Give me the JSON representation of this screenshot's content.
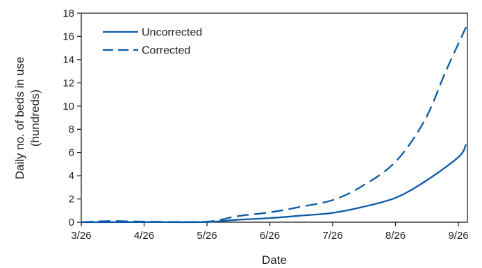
{
  "chart_data": {
    "type": "line",
    "title": "",
    "xlabel": "Date",
    "ylabel": [
      "Daily no. of beds in use",
      "(hundreds)"
    ],
    "x_ticks": [
      "3/26",
      "4/26",
      "5/26",
      "6/26",
      "7/26",
      "8/26",
      "9/26"
    ],
    "y_ticks": [
      "0",
      "2",
      "4",
      "6",
      "8",
      "10",
      "12",
      "14",
      "16",
      "18"
    ],
    "ylim": [
      0,
      18
    ],
    "grid": false,
    "legend_position": "top-left",
    "colors": {
      "line": "#0a5aa5",
      "axis": "#231f20"
    },
    "series": [
      {
        "name": "Uncorrected",
        "style": "solid",
        "points": [
          [
            "3/26",
            0.0
          ],
          [
            "4/26",
            0.01
          ],
          [
            "5/26",
            0.02
          ],
          [
            "6/10",
            0.2
          ],
          [
            "6/26",
            0.35
          ],
          [
            "7/10",
            0.55
          ],
          [
            "7/26",
            0.8
          ],
          [
            "8/10",
            1.3
          ],
          [
            "8/26",
            2.1
          ],
          [
            "9/10",
            3.5
          ],
          [
            "9/26",
            5.6
          ],
          [
            "9/30",
            6.7
          ]
        ]
      },
      {
        "name": "Corrected",
        "style": "dashed",
        "points": [
          [
            "3/26",
            0.0
          ],
          [
            "4/10",
            0.1
          ],
          [
            "4/26",
            0.05
          ],
          [
            "5/26",
            0.05
          ],
          [
            "6/10",
            0.5
          ],
          [
            "6/26",
            0.85
          ],
          [
            "7/10",
            1.3
          ],
          [
            "7/26",
            1.9
          ],
          [
            "8/10",
            3.1
          ],
          [
            "8/26",
            5.2
          ],
          [
            "9/10",
            8.8
          ],
          [
            "9/20",
            13.0
          ],
          [
            "9/30",
            16.8
          ]
        ]
      }
    ]
  }
}
